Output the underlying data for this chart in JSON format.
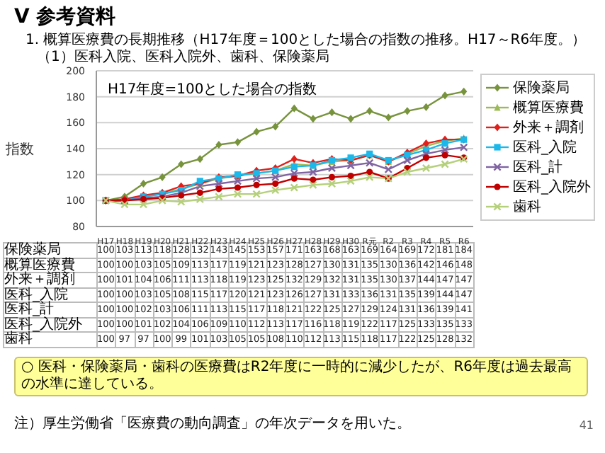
{
  "chart_data": {
    "type": "line",
    "title": "V 参考資料",
    "subtitle": "1. 概算医療費の長期推移（H17年度＝100とした場合の指数の推移。H17～R6年度。）",
    "ylabel": "指数",
    "categories": [
      "H17",
      "H18",
      "H19",
      "H20",
      "H21",
      "H22",
      "H23",
      "H24",
      "H25",
      "H26",
      "H27",
      "H28",
      "H29",
      "H30",
      "R元",
      "R2",
      "R3",
      "R4",
      "R5",
      "R6"
    ],
    "series": [
      {
        "name": "保険薬局",
        "color": "#77933c",
        "marker": "diamond",
        "values": [
          100,
          103,
          113,
          118,
          128,
          132,
          143,
          145,
          153,
          157,
          171,
          163,
          168,
          163,
          169,
          164,
          169,
          172,
          181,
          184
        ]
      },
      {
        "name": "概算医療費",
        "color": "#9bbb59",
        "marker": "triangle",
        "values": [
          100,
          100,
          103,
          105,
          109,
          113,
          117,
          119,
          121,
          123,
          128,
          127,
          130,
          131,
          135,
          130,
          136,
          142,
          146,
          148
        ]
      },
      {
        "name": "外来＋調剤",
        "color": "#e0201b",
        "marker": "diamond",
        "values": [
          100,
          101,
          104,
          106,
          111,
          113,
          118,
          119,
          123,
          125,
          132,
          129,
          132,
          131,
          135,
          130,
          137,
          144,
          147,
          147
        ]
      },
      {
        "name": "医科_入院",
        "color": "#1cb8ea",
        "marker": "square",
        "values": [
          100,
          100,
          103,
          105,
          108,
          115,
          117,
          120,
          121,
          123,
          126,
          127,
          131,
          133,
          136,
          131,
          135,
          139,
          144,
          147
        ]
      },
      {
        "name": "医科_計",
        "color": "#8064a2",
        "marker": "cross",
        "values": [
          100,
          100,
          102,
          103,
          106,
          111,
          113,
          115,
          117,
          118,
          121,
          122,
          125,
          127,
          129,
          124,
          131,
          136,
          139,
          141
        ]
      },
      {
        "name": "医科_入院外",
        "color": "#c00000",
        "marker": "circle",
        "values": [
          100,
          100,
          101,
          102,
          104,
          106,
          109,
          110,
          112,
          113,
          117,
          116,
          118,
          119,
          122,
          117,
          125,
          133,
          135,
          133
        ]
      },
      {
        "name": "歯科",
        "color": "#b5d07a",
        "marker": "cross",
        "values": [
          100,
          97,
          97,
          100,
          99,
          101,
          103,
          105,
          105,
          108,
          110,
          112,
          113,
          115,
          118,
          117,
          122,
          125,
          128,
          132
        ]
      }
    ],
    "ylim": [
      80,
      200
    ],
    "yticks": [
      80,
      100,
      120,
      140,
      160,
      180,
      200
    ],
    "grid": "y",
    "legend": "right",
    "data_labels": true,
    "annotations": [
      "（1）医科入院、医科入院外、歯科、保険薬局",
      "H17年度=100とした場合の指数",
      "○ 医科・保険薬局・歯科の医療費はR2年度に一時的に減少したが、R6年度は過去最高の水準に達している。",
      "注）厚生労働省「医療費の動向調査」の年次データを用いた。",
      "41"
    ]
  }
}
